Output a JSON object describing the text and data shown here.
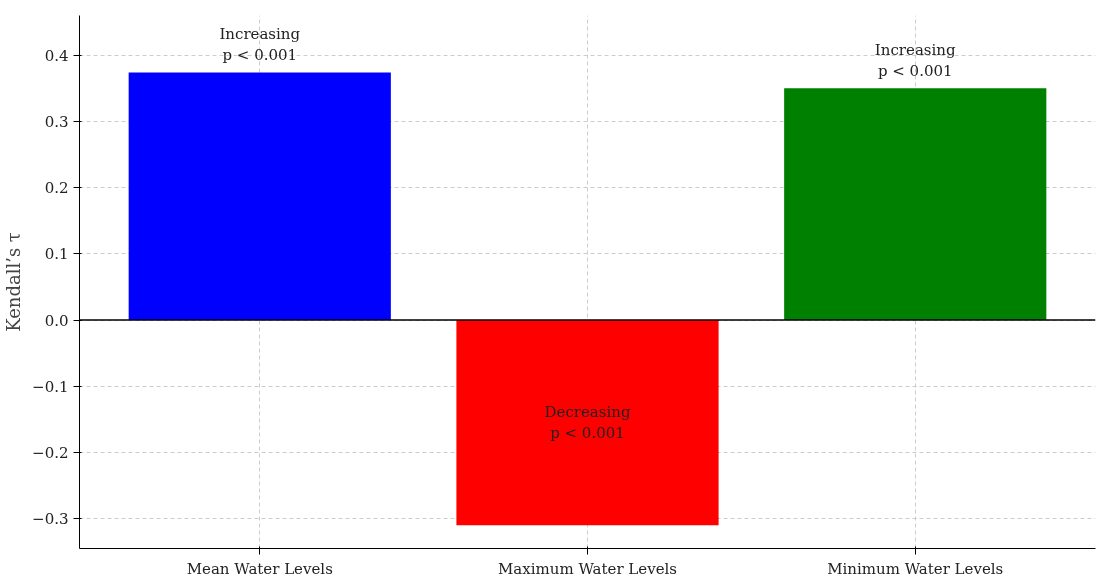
{
  "chart_data": {
    "type": "bar",
    "ylabel": "Kendall’s τ",
    "categories": [
      "Mean Water Levels",
      "Maximum Water Levels",
      "Minimum Water Levels"
    ],
    "values": [
      0.374,
      -0.31,
      0.35
    ],
    "colors": [
      "#0000ff",
      "#ff0000",
      "#008000"
    ],
    "ylim": [
      -0.345,
      0.46
    ],
    "yticks": [
      {
        "value": -0.3,
        "label": "−0.3"
      },
      {
        "value": -0.2,
        "label": "−0.2"
      },
      {
        "value": -0.1,
        "label": "−0.1"
      },
      {
        "value": 0,
        "label": "0.0"
      },
      0.1,
      0.2,
      0.3,
      0.4
    ],
    "grid": true,
    "ref_lines": [
      {
        "axis": "y",
        "value": 0,
        "color": "#000000"
      }
    ],
    "annotations": [
      "Increasing\np < 0.001",
      "Decreasing\np < 0.001",
      "Increasing\np < 0.001"
    ]
  }
}
